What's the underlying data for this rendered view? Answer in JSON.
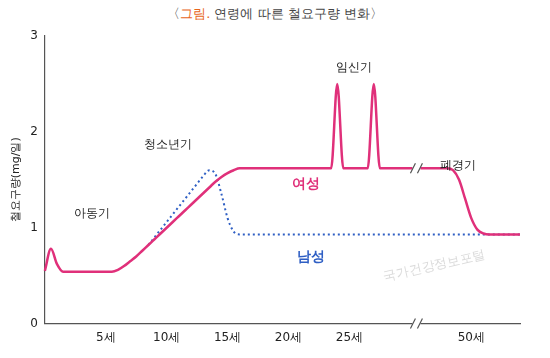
{
  "chart_data": {
    "type": "line",
    "title": "〈그림. 연령에 따른 철요구량 변화〉",
    "y_label": "철요구량(mg/일)",
    "categories": [
      null,
      null,
      null,
      null,
      null,
      null,
      null,
      null,
      null,
      null,
      "5세",
      null,
      null,
      null,
      null,
      null,
      null,
      null,
      null,
      null,
      "10세",
      null,
      null,
      null,
      null,
      null,
      null,
      null,
      null,
      null,
      "15세",
      null,
      null,
      null,
      null,
      null,
      null,
      null,
      null,
      null,
      "20세",
      null,
      null,
      null,
      null,
      null,
      null,
      null,
      null,
      null,
      "25세",
      null,
      null,
      null,
      null,
      null,
      null,
      null,
      null,
      null,
      null,
      null,
      null,
      null,
      null,
      null,
      null,
      null,
      null,
      null,
      "50세",
      null,
      null,
      null,
      null,
      null,
      null,
      null,
      null
    ],
    "series": [
      {
        "name": "여성",
        "color": "#e0307a",
        "line_style": "solid",
        "values": [
          0.55,
          0.78,
          0.62,
          0.54,
          0.54,
          0.54,
          0.54,
          0.54,
          0.54,
          0.54,
          0.54,
          0.54,
          0.56,
          0.6,
          0.65,
          0.7,
          0.76,
          0.82,
          0.88,
          0.94,
          1.0,
          1.06,
          1.12,
          1.18,
          1.24,
          1.3,
          1.36,
          1.42,
          1.48,
          1.53,
          1.57,
          1.6,
          1.62,
          1.62,
          1.62,
          1.62,
          1.62,
          1.62,
          1.62,
          1.62,
          1.62,
          1.62,
          1.62,
          1.62,
          1.62,
          1.62,
          1.62,
          1.62,
          2.5,
          1.62,
          1.62,
          1.62,
          1.62,
          1.62,
          2.5,
          1.62,
          1.62,
          1.62,
          1.62,
          1.62,
          1.62,
          1.62,
          1.62,
          1.62,
          1.62,
          1.62,
          1.62,
          1.6,
          1.5,
          1.3,
          1.1,
          0.98,
          0.94,
          0.93,
          0.93,
          0.93,
          0.93,
          0.93,
          0.93
        ]
      },
      {
        "name": "남성",
        "color": "#2f5fc4",
        "line_style": "dotted",
        "values": [
          null,
          null,
          null,
          null,
          null,
          null,
          null,
          null,
          null,
          null,
          null,
          null,
          null,
          null,
          null,
          null,
          null,
          0.82,
          0.9,
          0.98,
          1.06,
          1.14,
          1.22,
          1.3,
          1.38,
          1.46,
          1.54,
          1.6,
          1.56,
          1.35,
          1.1,
          0.96,
          0.93,
          0.93,
          0.93,
          0.93,
          0.93,
          0.93,
          0.93,
          0.93,
          0.93,
          0.93,
          0.93,
          0.93,
          0.93,
          0.93,
          0.93,
          0.93,
          0.93,
          0.93,
          0.93,
          0.93,
          0.93,
          0.93,
          0.93,
          0.93,
          0.93,
          0.93,
          0.93,
          0.93,
          0.93,
          0.93,
          0.93,
          0.93,
          0.93,
          0.93,
          0.93,
          0.93,
          0.93,
          0.93,
          0.93,
          0.93,
          0.93,
          0.93,
          0.93,
          0.93,
          0.93,
          0.93,
          0.93
        ]
      }
    ],
    "annotations": [
      "아동기",
      "청소년기",
      "임신기",
      "폐경기"
    ],
    "watermark": "국가건강정보포털",
    "ylim": [
      0,
      3
    ],
    "yticks": [
      0,
      1,
      2,
      3
    ],
    "grid": false
  }
}
